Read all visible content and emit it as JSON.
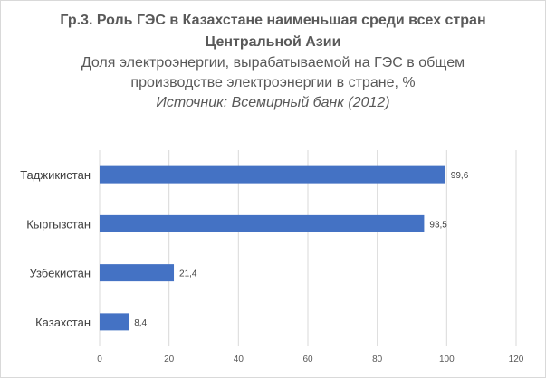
{
  "chart_data": {
    "type": "bar",
    "orientation": "horizontal",
    "title": "Гр.3. Роль ГЭС в Казахстане наименьшая среди всех стран Центральной Азии",
    "subtitle": "Доля электроэнергии, вырабатываемой на ГЭС в общем производстве электроэнергии в стране, %",
    "source": "Источник: Всемирный банк (2012)",
    "categories": [
      "Таджикистан",
      "Кыргызстан",
      "Узбекистан",
      "Казахстан"
    ],
    "values": [
      99.6,
      93.5,
      21.4,
      8.4
    ],
    "data_labels": [
      "99,6",
      "93,5",
      "21,4",
      "8,4"
    ],
    "xlim": [
      0,
      120
    ],
    "xticks": [
      0,
      20,
      40,
      60,
      80,
      100,
      120
    ],
    "tick_labels": [
      "0",
      "20",
      "40",
      "60",
      "80",
      "100",
      "120"
    ],
    "grid": "vertical",
    "legend": "none",
    "bar_color": "#4472c4",
    "grid_color": "#d9d9d9",
    "xlabel": "",
    "ylabel": ""
  }
}
